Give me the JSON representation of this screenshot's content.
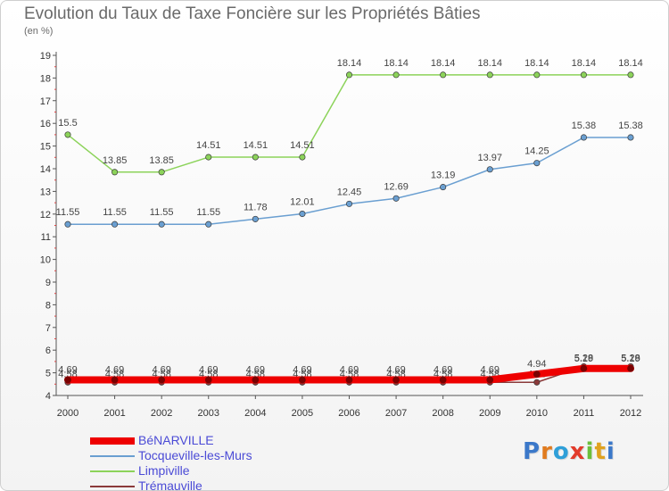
{
  "chart_data": {
    "type": "line",
    "title": "Evolution du Taux de Taxe Foncière sur les Propriétés Bâties",
    "subtitle": "(en %)",
    "ylim": [
      4,
      19
    ],
    "yticks": [
      "4",
      "5",
      "6",
      "7",
      "8",
      "9",
      "10",
      "11",
      "12",
      "13",
      "14",
      "15",
      "16",
      "17",
      "18",
      "19"
    ],
    "x": [
      "2000",
      "2001",
      "2002",
      "2003",
      "2004",
      "2005",
      "2006",
      "2007",
      "2008",
      "2009",
      "2010",
      "2011",
      "2012"
    ],
    "grid": false,
    "legend_position": "bottom-left",
    "series": [
      {
        "name": "Trémauville",
        "color": "#8b3a3a",
        "values": [
          4.58,
          4.58,
          4.58,
          4.58,
          4.58,
          4.58,
          4.58,
          4.58,
          4.58,
          4.58,
          4.58,
          5.28,
          5.28
        ],
        "labels": [
          "4.58",
          "4.58",
          "4.58",
          "4.58",
          "4.58",
          "4.58",
          "4.58",
          "4.58",
          "4.58",
          "4.58",
          "4.58",
          "5.28",
          "5.28"
        ]
      },
      {
        "name": "Limpiville",
        "color": "#8cd35a",
        "values": [
          15.5,
          13.85,
          13.85,
          14.51,
          14.51,
          14.51,
          18.14,
          18.14,
          18.14,
          18.14,
          18.14,
          18.14,
          18.14
        ],
        "labels": [
          "15.5",
          "13.85",
          "13.85",
          "14.51",
          "14.51",
          "14.51",
          "18.14",
          "18.14",
          "18.14",
          "18.14",
          "18.14",
          "18.14",
          "18.14"
        ]
      },
      {
        "name": "Tocqueville-les-Murs",
        "color": "#6a9fd1",
        "values": [
          11.55,
          11.55,
          11.55,
          11.55,
          11.78,
          12.01,
          12.45,
          12.69,
          13.19,
          13.97,
          14.25,
          15.38,
          15.38
        ],
        "labels": [
          "11.55",
          "11.55",
          "11.55",
          "11.55",
          "11.78",
          "12.01",
          "12.45",
          "12.69",
          "13.19",
          "13.97",
          "14.25",
          "15.38",
          "15.38"
        ]
      },
      {
        "name": "BéNARVILLE",
        "color": "#ee0000",
        "values": [
          4.69,
          4.69,
          4.69,
          4.69,
          4.69,
          4.69,
          4.69,
          4.69,
          4.69,
          4.69,
          4.94,
          5.19,
          5.19
        ],
        "labels": [
          "4.69",
          "4.69",
          "4.69",
          "4.69",
          "4.69",
          "4.69",
          "4.69",
          "4.69",
          "4.69",
          "4.69",
          "4.94",
          "5.19",
          "5.19"
        ]
      }
    ]
  },
  "legend": {
    "items": [
      {
        "label": "BéNARVILLE",
        "color": "#ee0000"
      },
      {
        "label": "Tocqueville-les-Murs",
        "color": "#6a9fd1"
      },
      {
        "label": "Limpiville",
        "color": "#8cd35a"
      },
      {
        "label": "Trémauville",
        "color": "#8b3a3a"
      }
    ]
  },
  "logo": {
    "text": "Proxiti",
    "colors": [
      "#3b78c9",
      "#e07b1f",
      "#2f9fd8",
      "#e23b2b",
      "#6bbf3b",
      "#e0a21f",
      "#3b78c9"
    ]
  }
}
